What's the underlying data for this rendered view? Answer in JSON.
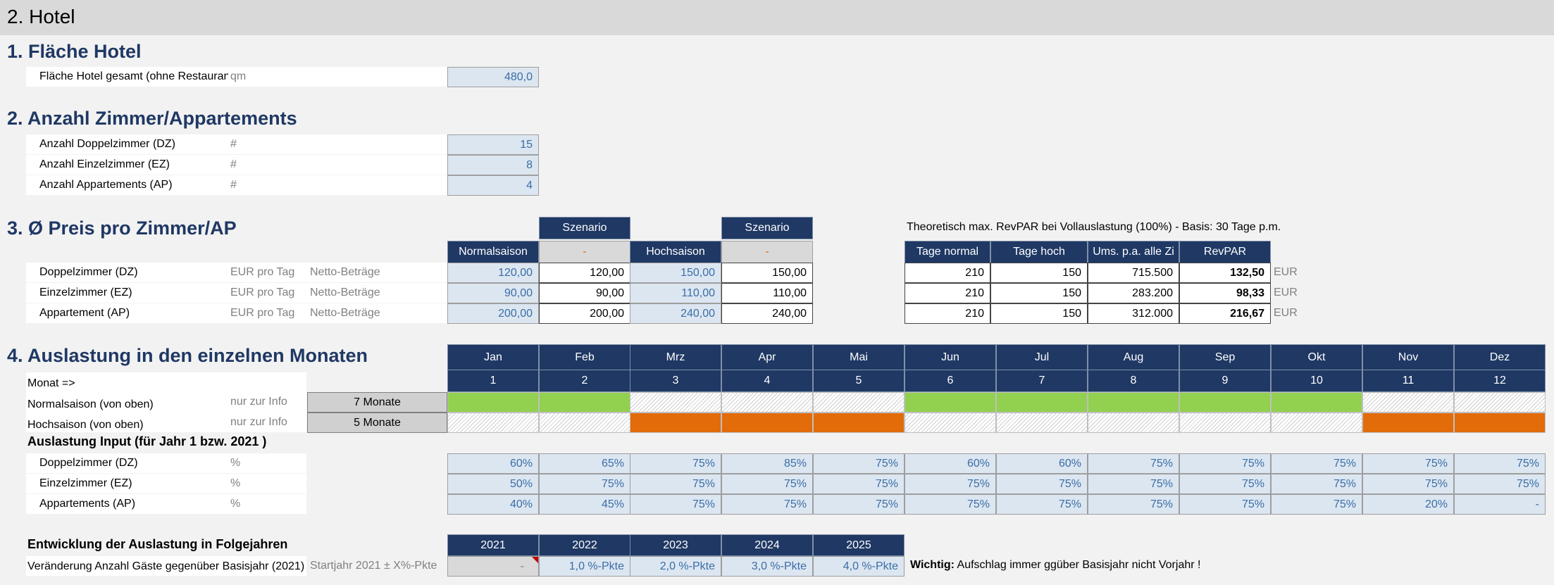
{
  "sheet_title": "2. Hotel",
  "s1": {
    "title": "1. Fläche Hotel",
    "row": {
      "label": "Fläche Hotel gesamt  (ohne Restaurant)",
      "unit": "qm",
      "value": "480,0"
    }
  },
  "s2": {
    "title": "2. Anzahl Zimmer/Appartements",
    "rows": [
      {
        "label": "Anzahl Doppelzimmer (DZ)",
        "unit": "#",
        "value": "15"
      },
      {
        "label": "Anzahl Einzelzimmer (EZ)",
        "unit": "#",
        "value": "8"
      },
      {
        "label": "Anzahl Appartements (AP)",
        "unit": "#",
        "value": "4"
      }
    ]
  },
  "s3": {
    "title": "3. Ø Preis pro Zimmer/AP",
    "szenario": "Szenario",
    "normalsaison": "Normalsaison",
    "hochsaison": "Hochsaison",
    "dash": "-",
    "revpar_note": "Theoretisch max. RevPAR bei Vollauslastung (100%) - Basis: 30 Tage p.m.",
    "rev_headers": [
      "Tage normal",
      "Tage hoch",
      "Ums. p.a. alle Zi",
      "RevPAR"
    ],
    "rows": [
      {
        "label": "Doppelzimmer (DZ)",
        "unit": "EUR pro Tag",
        "note": "Netto-Beträge",
        "normal": "120,00",
        "sz1": "120,00",
        "hoch": "150,00",
        "sz2": "150,00",
        "tage_normal": "210",
        "tage_hoch": "150",
        "umsatz": "715.500",
        "revpar": "132,50",
        "cur": "EUR"
      },
      {
        "label": "Einzelzimmer (EZ)",
        "unit": "EUR pro Tag",
        "note": "Netto-Beträge",
        "normal": "90,00",
        "sz1": "90,00",
        "hoch": "110,00",
        "sz2": "110,00",
        "tage_normal": "210",
        "tage_hoch": "150",
        "umsatz": "283.200",
        "revpar": "98,33",
        "cur": "EUR"
      },
      {
        "label": "Appartement (AP)",
        "unit": "EUR pro Tag",
        "note": "Netto-Beträge",
        "normal": "200,00",
        "sz1": "200,00",
        "hoch": "240,00",
        "sz2": "240,00",
        "tage_normal": "210",
        "tage_hoch": "150",
        "umsatz": "312.000",
        "revpar": "216,67",
        "cur": "EUR"
      }
    ]
  },
  "s4": {
    "title": "4. Auslastung in den einzelnen Monaten",
    "months": [
      "Jan",
      "Feb",
      "Mrz",
      "Apr",
      "Mai",
      "Jun",
      "Jul",
      "Aug",
      "Sep",
      "Okt",
      "Nov",
      "Dez"
    ],
    "month_numbers": [
      "1",
      "2",
      "3",
      "4",
      "5",
      "6",
      "7",
      "8",
      "9",
      "10",
      "11",
      "12"
    ],
    "monat_label": "Monat =>",
    "normal_label": "Normalsaison (von oben)",
    "hoch_label": "Hochsaison (von oben)",
    "info": "nur zur Info",
    "normal_count": "7 Monate",
    "hoch_count": "5 Monate",
    "normal_pattern": [
      "green",
      "green",
      "hatch",
      "hatch",
      "hatch",
      "green",
      "green",
      "green",
      "green",
      "green",
      "hatch",
      "hatch"
    ],
    "hoch_pattern": [
      "hatch",
      "hatch",
      "orange",
      "orange",
      "orange",
      "hatch",
      "hatch",
      "hatch",
      "hatch",
      "hatch",
      "orange",
      "orange"
    ],
    "input_title": "Auslastung Input (für Jahr 1 bzw. 2021 )",
    "occ_rows": [
      {
        "label": "Doppelzimmer (DZ)",
        "unit": "%",
        "values": [
          "60%",
          "65%",
          "75%",
          "85%",
          "75%",
          "60%",
          "60%",
          "75%",
          "75%",
          "75%",
          "75%",
          "75%"
        ]
      },
      {
        "label": "Einzelzimmer (EZ)",
        "unit": "%",
        "values": [
          "50%",
          "75%",
          "75%",
          "75%",
          "75%",
          "75%",
          "75%",
          "75%",
          "75%",
          "75%",
          "75%",
          "75%"
        ]
      },
      {
        "label": "Appartements (AP)",
        "unit": "%",
        "values": [
          "40%",
          "45%",
          "75%",
          "75%",
          "75%",
          "75%",
          "75%",
          "75%",
          "75%",
          "75%",
          "20%",
          "-"
        ]
      }
    ],
    "dev_title": "Entwicklung der Auslastung in Folgejahren",
    "years": [
      "2021",
      "2022",
      "2023",
      "2024",
      "2025"
    ],
    "dev_label": "Veränderung Anzahl Gäste gegenüber Basisjahr (2021)",
    "dev_note": "Startjahr 2021 ± X%-Pkte",
    "dev_values": [
      "-",
      "1,0 %-Pkte",
      "2,0 %-Pkte",
      "3,0 %-Pkte",
      "4,0 %-Pkte"
    ],
    "wichtig_label": "Wichtig:",
    "wichtig_text": "Aufschlag immer ggüber Basisjahr nicht Vorjahr !"
  }
}
